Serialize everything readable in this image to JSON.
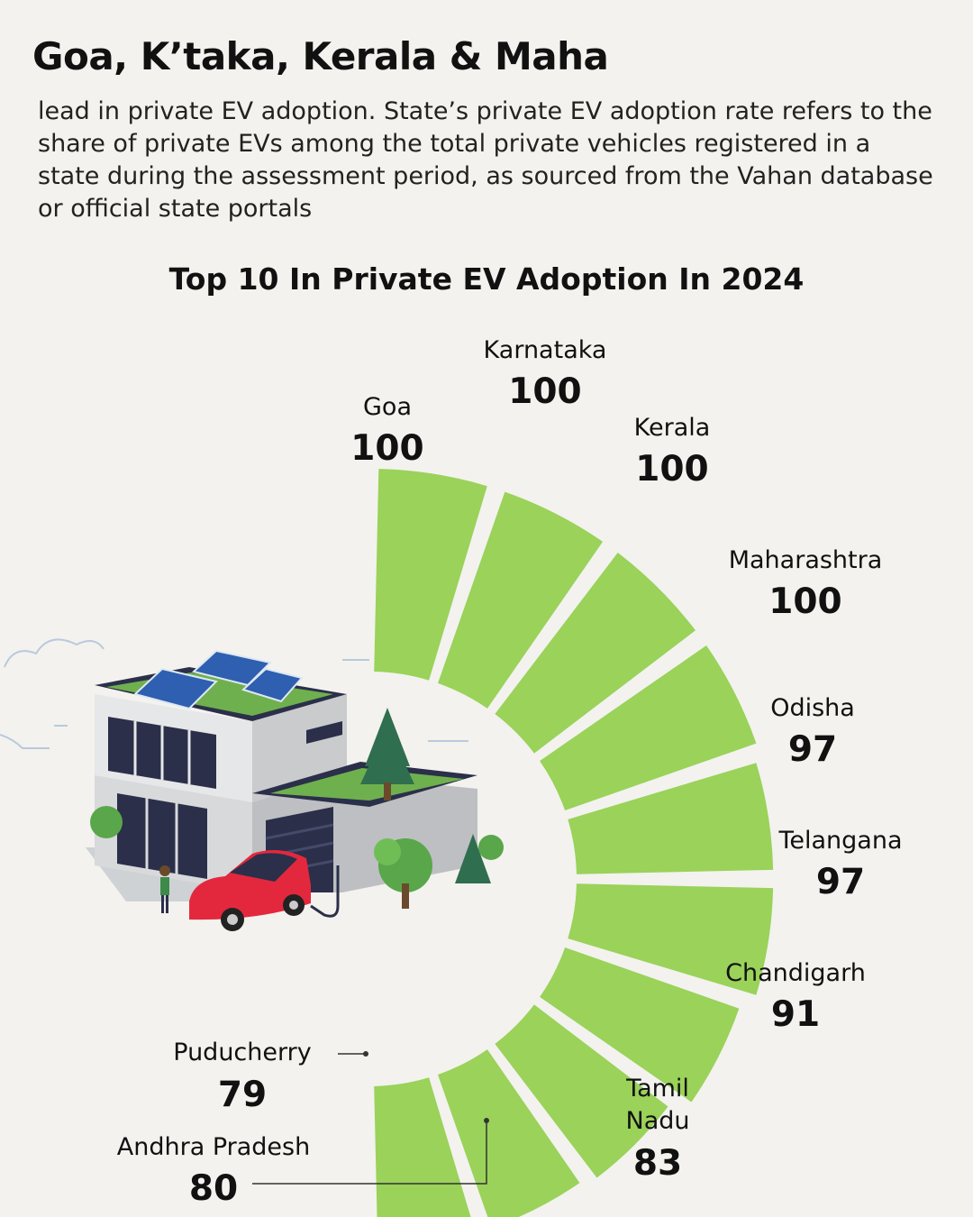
{
  "header": {
    "headline": "Goa, K’taka, Kerala & Maha",
    "subtext": "lead in private EV adoption. State’s private EV adoption rate refers to the share of private EVs among the total private vehicles registered in a state during the assessment period, as sourced from the Vahan database or official state portals"
  },
  "chart_data": {
    "type": "bar",
    "layout": "radial",
    "title": "Top 10 In Private EV Adoption In 2024",
    "categories": [
      "Goa",
      "Karnataka",
      "Kerala",
      "Maharashtra",
      "Odisha",
      "Telangana",
      "Chandigarh",
      "Tamil Nadu",
      "Andhra Pradesh",
      "Puducherry"
    ],
    "values": [
      100,
      100,
      100,
      100,
      97,
      97,
      91,
      83,
      80,
      79
    ],
    "bar_color": "#9ad25a"
  },
  "illustration": {
    "description_icon": "house-with-solar-panels-and-ev-charging-icon"
  }
}
